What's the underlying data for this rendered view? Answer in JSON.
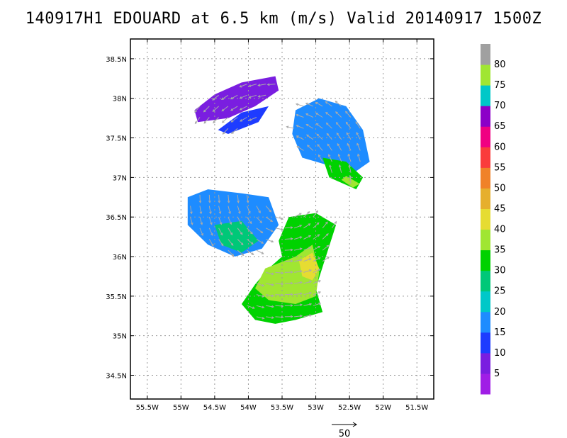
{
  "title": "140917H1 EDOUARD at 6.5 km (m/s) Valid 20140917  1500Z",
  "chart_data": {
    "type": "heatmap",
    "title": "140917H1 EDOUARD at 6.5 km (m/s) Valid 20140917  1500Z",
    "x_ticks": [
      "55.5W",
      "55W",
      "54.5W",
      "54W",
      "53.5W",
      "53W",
      "52.5W",
      "52W",
      "51.5W"
    ],
    "x_values": [
      -55.5,
      -55,
      -54.5,
      -54,
      -53.5,
      -53,
      -52.5,
      -52,
      -51.5
    ],
    "y_ticks": [
      "34.5N",
      "35N",
      "35.5N",
      "36N",
      "36.5N",
      "37N",
      "37.5N",
      "38N",
      "38.5N"
    ],
    "y_values": [
      34.5,
      35,
      35.5,
      36,
      36.5,
      37,
      37.5,
      38,
      38.5
    ],
    "xlim": [
      -55.75,
      -51.25
    ],
    "ylim": [
      34.2,
      38.75
    ],
    "grid": true,
    "colorbar": {
      "labels": [
        "5",
        "10",
        "15",
        "20",
        "25",
        "30",
        "35",
        "40",
        "45",
        "50",
        "55",
        "60",
        "65",
        "70",
        "75",
        "80"
      ],
      "levels": [
        5,
        10,
        15,
        20,
        25,
        30,
        35,
        40,
        45,
        50,
        55,
        60,
        65,
        70,
        75,
        80
      ],
      "colors": [
        "#a01ee6",
        "#7a1ee0",
        "#1e3cff",
        "#1e8cff",
        "#00c8c8",
        "#00c878",
        "#00d200",
        "#a0e632",
        "#e6dc32",
        "#e6af2d",
        "#f08228",
        "#fa3c3c",
        "#f00082",
        "#8c00c8",
        "#00c8c8",
        "#a0e632",
        "#a0a0a0"
      ]
    },
    "vector_reference": {
      "label": "50",
      "value": 50
    }
  }
}
